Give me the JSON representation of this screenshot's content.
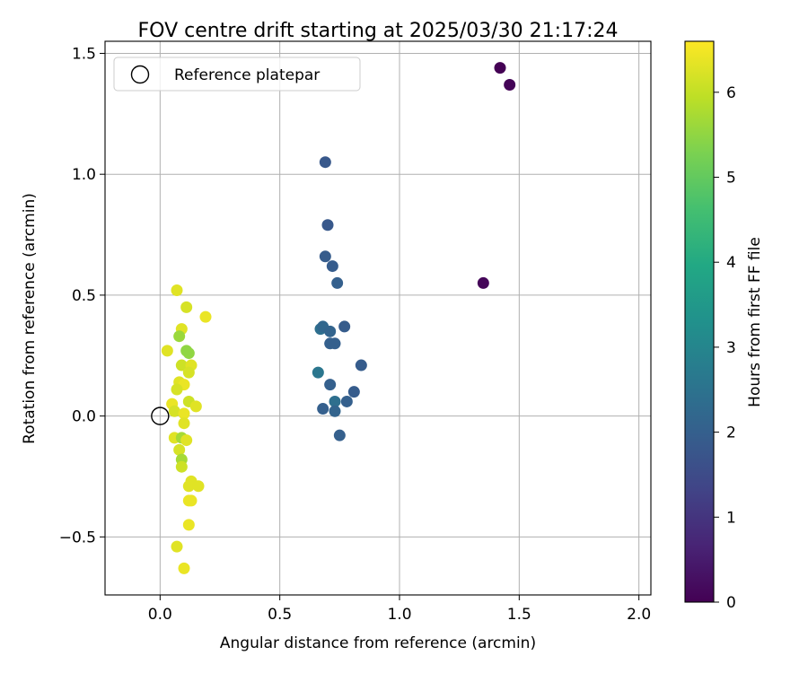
{
  "chart_data": {
    "type": "scatter",
    "title": "FOV centre drift starting at 2025/03/30 21:17:24",
    "xlabel": "Angular distance from reference (arcmin)",
    "ylabel": "Rotation from reference (arcmin)",
    "xlim": [
      -0.23,
      2.05
    ],
    "ylim": [
      -0.74,
      1.55
    ],
    "xticks": [
      {
        "value": 0.0,
        "label": "0.0"
      },
      {
        "value": 0.5,
        "label": "0.5"
      },
      {
        "value": 1.0,
        "label": "1.0"
      },
      {
        "value": 1.5,
        "label": "1.5"
      },
      {
        "value": 2.0,
        "label": "2.0"
      }
    ],
    "yticks": [
      {
        "value": -0.5,
        "label": "−0.5"
      },
      {
        "value": 0.0,
        "label": "0.0"
      },
      {
        "value": 0.5,
        "label": "0.5"
      },
      {
        "value": 1.0,
        "label": "1.0"
      },
      {
        "value": 1.5,
        "label": "1.5"
      }
    ],
    "grid": true,
    "legend": {
      "placement": "top-left",
      "entries": [
        {
          "label": "Reference platepar",
          "marker": "open-circle"
        }
      ]
    },
    "reference_point": {
      "x": 0.0,
      "y": 0.0
    },
    "colormap": "viridis",
    "colorbar": {
      "label": "Hours from first FF file",
      "range": [
        0,
        6.6
      ],
      "ticks": [
        {
          "value": 0,
          "label": "0"
        },
        {
          "value": 1,
          "label": "1"
        },
        {
          "value": 2,
          "label": "2"
        },
        {
          "value": 3,
          "label": "3"
        },
        {
          "value": 4,
          "label": "4"
        },
        {
          "value": 5,
          "label": "5"
        },
        {
          "value": 6,
          "label": "6"
        }
      ]
    },
    "points": [
      {
        "x": 1.42,
        "y": 1.44,
        "c": 0.0
      },
      {
        "x": 1.46,
        "y": 1.37,
        "c": 0.05
      },
      {
        "x": 1.35,
        "y": 0.55,
        "c": 0.1
      },
      {
        "x": 0.69,
        "y": 1.05,
        "c": 1.8
      },
      {
        "x": 0.7,
        "y": 0.79,
        "c": 1.8
      },
      {
        "x": 0.69,
        "y": 0.66,
        "c": 1.9
      },
      {
        "x": 0.72,
        "y": 0.62,
        "c": 1.9
      },
      {
        "x": 0.74,
        "y": 0.55,
        "c": 2.0
      },
      {
        "x": 0.67,
        "y": 0.36,
        "c": 2.4
      },
      {
        "x": 0.68,
        "y": 0.37,
        "c": 2.2
      },
      {
        "x": 0.71,
        "y": 0.35,
        "c": 2.1
      },
      {
        "x": 0.77,
        "y": 0.37,
        "c": 1.9
      },
      {
        "x": 0.71,
        "y": 0.3,
        "c": 2.0
      },
      {
        "x": 0.73,
        "y": 0.3,
        "c": 2.0
      },
      {
        "x": 0.84,
        "y": 0.21,
        "c": 1.9
      },
      {
        "x": 0.66,
        "y": 0.18,
        "c": 2.6
      },
      {
        "x": 0.71,
        "y": 0.13,
        "c": 2.0
      },
      {
        "x": 0.81,
        "y": 0.1,
        "c": 1.9
      },
      {
        "x": 0.73,
        "y": 0.06,
        "c": 2.4
      },
      {
        "x": 0.78,
        "y": 0.06,
        "c": 2.0
      },
      {
        "x": 0.68,
        "y": 0.03,
        "c": 2.0
      },
      {
        "x": 0.73,
        "y": 0.02,
        "c": 2.1
      },
      {
        "x": 0.75,
        "y": -0.08,
        "c": 2.0
      },
      {
        "x": 0.07,
        "y": 0.52,
        "c": 6.3
      },
      {
        "x": 0.11,
        "y": 0.45,
        "c": 6.2
      },
      {
        "x": 0.19,
        "y": 0.41,
        "c": 6.4
      },
      {
        "x": 0.09,
        "y": 0.36,
        "c": 6.3
      },
      {
        "x": 0.08,
        "y": 0.33,
        "c": 5.6
      },
      {
        "x": 0.03,
        "y": 0.27,
        "c": 6.3
      },
      {
        "x": 0.11,
        "y": 0.27,
        "c": 5.5
      },
      {
        "x": 0.12,
        "y": 0.26,
        "c": 5.5
      },
      {
        "x": 0.09,
        "y": 0.21,
        "c": 6.1
      },
      {
        "x": 0.13,
        "y": 0.21,
        "c": 6.3
      },
      {
        "x": 0.12,
        "y": 0.18,
        "c": 6.2
      },
      {
        "x": 0.08,
        "y": 0.14,
        "c": 6.3
      },
      {
        "x": 0.1,
        "y": 0.13,
        "c": 6.4
      },
      {
        "x": 0.07,
        "y": 0.11,
        "c": 6.2
      },
      {
        "x": 0.12,
        "y": 0.06,
        "c": 6.1
      },
      {
        "x": 0.05,
        "y": 0.05,
        "c": 6.4
      },
      {
        "x": 0.15,
        "y": 0.04,
        "c": 6.3
      },
      {
        "x": 0.06,
        "y": 0.02,
        "c": 6.2
      },
      {
        "x": 0.1,
        "y": 0.01,
        "c": 6.4
      },
      {
        "x": 0.1,
        "y": -0.03,
        "c": 6.3
      },
      {
        "x": 0.06,
        "y": -0.09,
        "c": 6.3
      },
      {
        "x": 0.09,
        "y": -0.09,
        "c": 5.7
      },
      {
        "x": 0.11,
        "y": -0.1,
        "c": 6.3
      },
      {
        "x": 0.08,
        "y": -0.14,
        "c": 6.2
      },
      {
        "x": 0.09,
        "y": -0.18,
        "c": 5.7
      },
      {
        "x": 0.09,
        "y": -0.21,
        "c": 6.1
      },
      {
        "x": 0.13,
        "y": -0.27,
        "c": 6.3
      },
      {
        "x": 0.12,
        "y": -0.29,
        "c": 6.3
      },
      {
        "x": 0.16,
        "y": -0.29,
        "c": 6.3
      },
      {
        "x": 0.12,
        "y": -0.35,
        "c": 6.4
      },
      {
        "x": 0.13,
        "y": -0.35,
        "c": 6.4
      },
      {
        "x": 0.12,
        "y": -0.45,
        "c": 6.4
      },
      {
        "x": 0.07,
        "y": -0.54,
        "c": 6.3
      },
      {
        "x": 0.1,
        "y": -0.63,
        "c": 6.4
      }
    ]
  }
}
